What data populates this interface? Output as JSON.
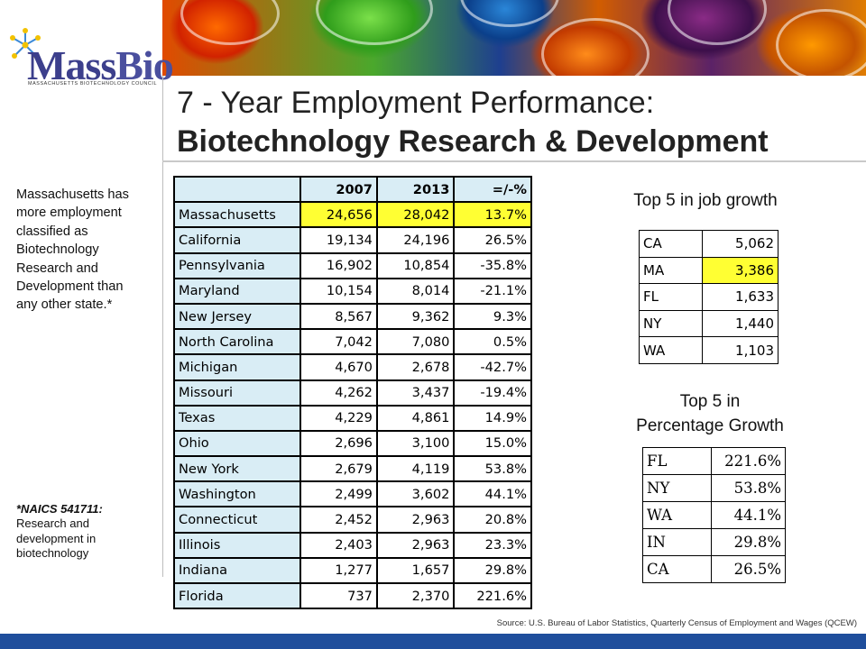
{
  "logo": {
    "name_part1": "Mass",
    "name_part2": "Bio",
    "subtitle": "MASSACHUSETTS BIOTECHNOLOGY COUNCIL"
  },
  "title": {
    "line1": "7 - Year Employment Performance:",
    "line2": "Biotechnology Research & Development"
  },
  "side_note": "Massachusetts has more employment classified as Biotechnology Research and Development than any other state.*",
  "footnote": {
    "code": "*NAICS 541711:",
    "text": "Research and development in biotechnology"
  },
  "main_table": {
    "headers": [
      "",
      "2007",
      "2013",
      "=/-%"
    ],
    "rows": [
      {
        "state": "Massachusetts",
        "y2007": "24,656",
        "y2013": "28,042",
        "pct": "13.7%",
        "highlight": true
      },
      {
        "state": "California",
        "y2007": "19,134",
        "y2013": "24,196",
        "pct": "26.5%"
      },
      {
        "state": "Pennsylvania",
        "y2007": "16,902",
        "y2013": "10,854",
        "pct": "-35.8%"
      },
      {
        "state": "Maryland",
        "y2007": "10,154",
        "y2013": "8,014",
        "pct": "-21.1%"
      },
      {
        "state": "New Jersey",
        "y2007": "8,567",
        "y2013": "9,362",
        "pct": "9.3%"
      },
      {
        "state": "North Carolina",
        "y2007": "7,042",
        "y2013": "7,080",
        "pct": "0.5%"
      },
      {
        "state": "Michigan",
        "y2007": "4,670",
        "y2013": "2,678",
        "pct": "-42.7%"
      },
      {
        "state": "Missouri",
        "y2007": "4,262",
        "y2013": "3,437",
        "pct": "-19.4%"
      },
      {
        "state": "Texas",
        "y2007": "4,229",
        "y2013": "4,861",
        "pct": "14.9%"
      },
      {
        "state": "Ohio",
        "y2007": "2,696",
        "y2013": "3,100",
        "pct": "15.0%"
      },
      {
        "state": "New York",
        "y2007": "2,679",
        "y2013": "4,119",
        "pct": "53.8%"
      },
      {
        "state": "Washington",
        "y2007": "2,499",
        "y2013": "3,602",
        "pct": "44.1%"
      },
      {
        "state": "Connecticut",
        "y2007": "2,452",
        "y2013": "2,963",
        "pct": "20.8%"
      },
      {
        "state": "Illinois",
        "y2007": "2,403",
        "y2013": "2,963",
        "pct": "23.3%"
      },
      {
        "state": "Indiana",
        "y2007": "1,277",
        "y2013": "1,657",
        "pct": "29.8%"
      },
      {
        "state": "Florida",
        "y2007": "737",
        "y2013": "2,370",
        "pct": "221.6%"
      }
    ]
  },
  "job_growth": {
    "title": "Top 5 in job growth",
    "rows": [
      {
        "state": "CA",
        "value": "5,062"
      },
      {
        "state": "MA",
        "value": "3,386",
        "highlight": true
      },
      {
        "state": "FL",
        "value": "1,633"
      },
      {
        "state": "NY",
        "value": "1,440"
      },
      {
        "state": "WA",
        "value": "1,103"
      }
    ]
  },
  "pct_growth": {
    "title_line1": "Top 5 in",
    "title_line2": "Percentage Growth",
    "rows": [
      {
        "state": "FL",
        "value": "221.6%"
      },
      {
        "state": "NY",
        "value": "53.8%"
      },
      {
        "state": "WA",
        "value": "44.1%"
      },
      {
        "state": "IN",
        "value": "29.8%"
      },
      {
        "state": "CA",
        "value": "26.5%"
      }
    ]
  },
  "source": "Source: U.S. Bureau of Labor Statistics, Quarterly Census of Employment and Wages (QCEW)",
  "colors": {
    "highlight": "#ffff33",
    "header_fill": "#d9edf5",
    "footer_bar": "#1f4e9c",
    "logo_blue": "#3c3f8c"
  }
}
